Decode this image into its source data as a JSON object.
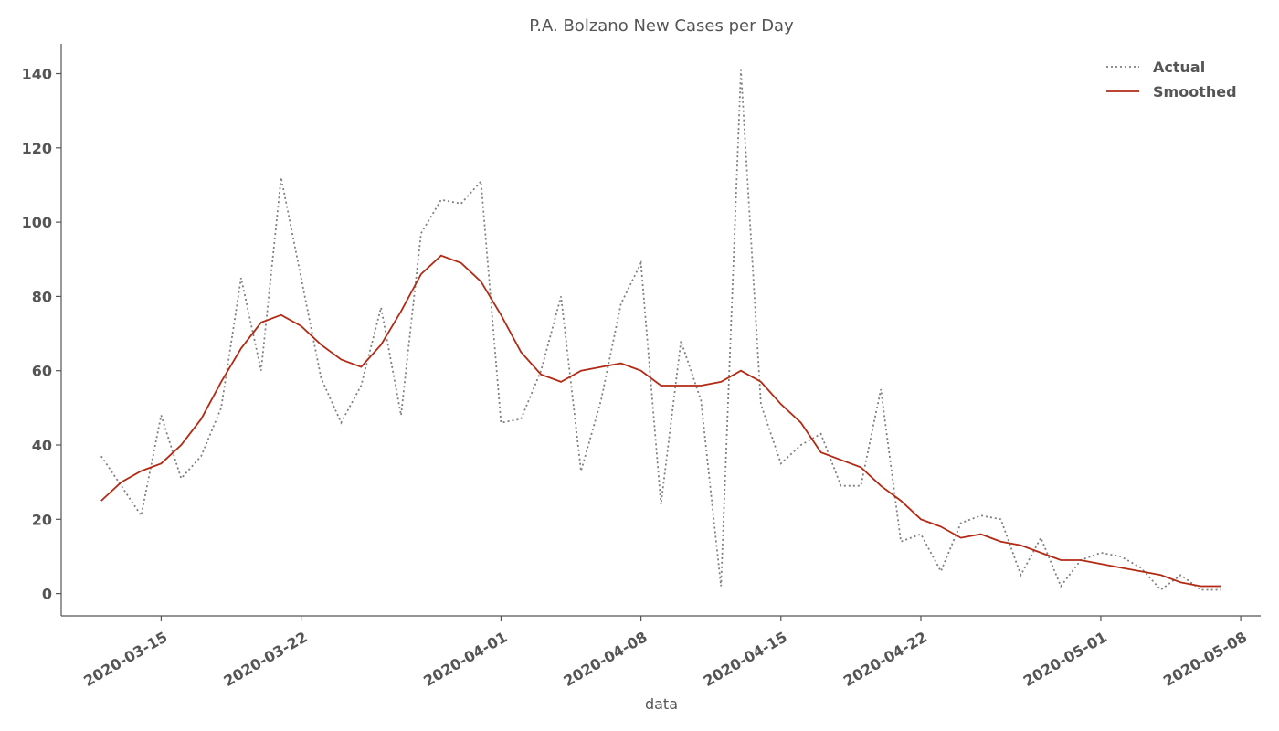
{
  "chart_data": {
    "type": "line",
    "title": "P.A. Bolzano New Cases per Day",
    "xlabel": "data",
    "ylabel": "",
    "xlim": [
      "2020-03-10",
      "2020-05-09"
    ],
    "ylim": [
      -6,
      148
    ],
    "x_ticks": [
      "2020-03-15",
      "2020-03-22",
      "2020-04-01",
      "2020-04-08",
      "2020-04-15",
      "2020-04-22",
      "2020-05-01",
      "2020-05-08"
    ],
    "y_ticks": [
      0,
      20,
      40,
      60,
      80,
      100,
      120,
      140
    ],
    "grid": false,
    "legend_position": "top-right",
    "x": [
      "2020-03-12",
      "2020-03-13",
      "2020-03-14",
      "2020-03-15",
      "2020-03-16",
      "2020-03-17",
      "2020-03-18",
      "2020-03-19",
      "2020-03-20",
      "2020-03-21",
      "2020-03-22",
      "2020-03-23",
      "2020-03-24",
      "2020-03-25",
      "2020-03-26",
      "2020-03-27",
      "2020-03-28",
      "2020-03-29",
      "2020-03-30",
      "2020-03-31",
      "2020-04-01",
      "2020-04-02",
      "2020-04-03",
      "2020-04-04",
      "2020-04-05",
      "2020-04-06",
      "2020-04-07",
      "2020-04-08",
      "2020-04-09",
      "2020-04-10",
      "2020-04-11",
      "2020-04-12",
      "2020-04-13",
      "2020-04-14",
      "2020-04-15",
      "2020-04-16",
      "2020-04-17",
      "2020-04-18",
      "2020-04-19",
      "2020-04-20",
      "2020-04-21",
      "2020-04-22",
      "2020-04-23",
      "2020-04-24",
      "2020-04-25",
      "2020-04-26",
      "2020-04-27",
      "2020-04-28",
      "2020-04-29",
      "2020-04-30",
      "2020-05-01",
      "2020-05-02",
      "2020-05-03",
      "2020-05-04",
      "2020-05-05",
      "2020-05-06",
      "2020-05-07"
    ],
    "series": [
      {
        "name": "Actual",
        "color": "#808080",
        "style": "dotted",
        "values": [
          37,
          29,
          21,
          48,
          31,
          37,
          50,
          85,
          60,
          112,
          85,
          58,
          46,
          56,
          77,
          48,
          97,
          106,
          105,
          111,
          46,
          47,
          60,
          80,
          33,
          52,
          78,
          89,
          24,
          68,
          52,
          2,
          141,
          51,
          35,
          40,
          43,
          29,
          29,
          55,
          14,
          16,
          6,
          19,
          21,
          20,
          5,
          15,
          2,
          9,
          11,
          10,
          7,
          1,
          5,
          1,
          1
        ]
      },
      {
        "name": "Smoothed",
        "color": "#b22a14",
        "style": "solid",
        "values": [
          25,
          30,
          33,
          35,
          40,
          47,
          57,
          66,
          73,
          75,
          72,
          67,
          63,
          61,
          67,
          76,
          86,
          91,
          89,
          84,
          75,
          65,
          59,
          57,
          60,
          61,
          62,
          60,
          56,
          56,
          56,
          57,
          60,
          57,
          51,
          46,
          38,
          36,
          34,
          29,
          25,
          20,
          18,
          15,
          16,
          14,
          13,
          11,
          9,
          9,
          8,
          7,
          6,
          5,
          3,
          2,
          2
        ]
      }
    ]
  }
}
